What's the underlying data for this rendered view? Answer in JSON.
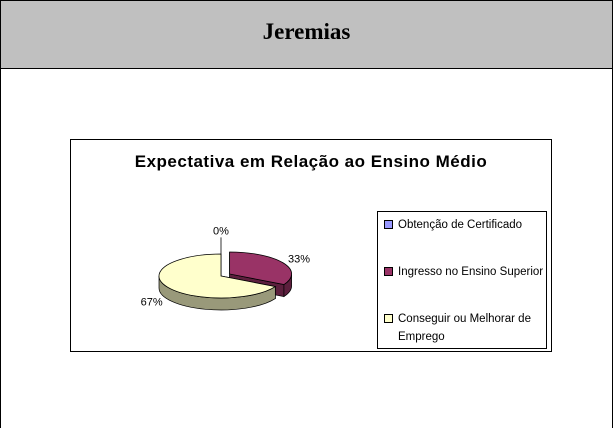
{
  "header": {
    "title": "Jeremias"
  },
  "chart_data": {
    "type": "pie3d",
    "title": "Expectativa em Relação ao Ensino Médio",
    "categories": [
      "Obtenção de Certificado",
      "Ingresso no Ensino Superior",
      "Conseguir ou Melhorar de Emprego"
    ],
    "values": [
      0,
      33,
      67
    ],
    "value_labels": [
      "0%",
      "33%",
      "67%"
    ],
    "colors": [
      "#9999ff",
      "#993366",
      "#ffffcc"
    ],
    "exploded": [
      false,
      true,
      false
    ],
    "legend": "right"
  }
}
